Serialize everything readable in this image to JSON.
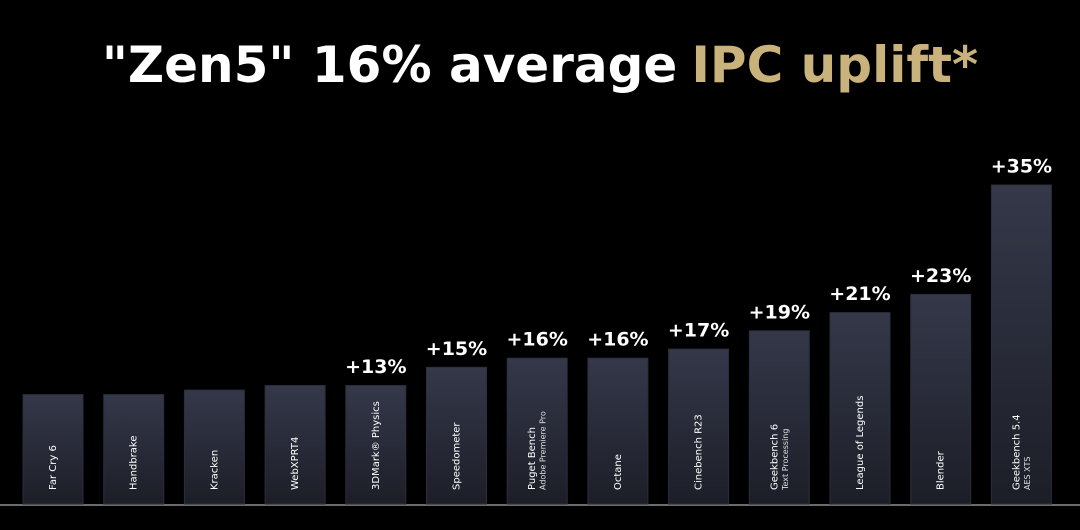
{
  "chart_data": {
    "type": "bar",
    "title": [
      "\"Zen5\" 16% average",
      "IPC uplift*"
    ],
    "title_highlight_color": "#c9b27c",
    "categories": [
      "Far Cry 6",
      "Handbrake",
      "Kracken",
      "WebXPRT4",
      "3DMark® Physics",
      "Speedometer",
      "Puget Bench",
      "Octane",
      "Cinebench R23",
      "Geekbench 6",
      "League of Legends",
      "Blender",
      "Geekbench 5.4"
    ],
    "sublabels": [
      null,
      null,
      null,
      null,
      null,
      null,
      "Adobe Premiere Pro",
      null,
      null,
      "Text Processing",
      null,
      null,
      "AES XTS"
    ],
    "values": [
      12,
      12,
      12.5,
      13,
      13,
      15,
      16,
      16,
      17,
      19,
      21,
      23,
      35
    ],
    "value_labels": [
      null,
      null,
      null,
      null,
      "+13%",
      "+15%",
      "+16%",
      "+16%",
      "+17%",
      "+19%",
      "+21%",
      "+23%",
      "+35%"
    ],
    "color": "#2b2e3b",
    "ylim": [
      0,
      35
    ]
  }
}
